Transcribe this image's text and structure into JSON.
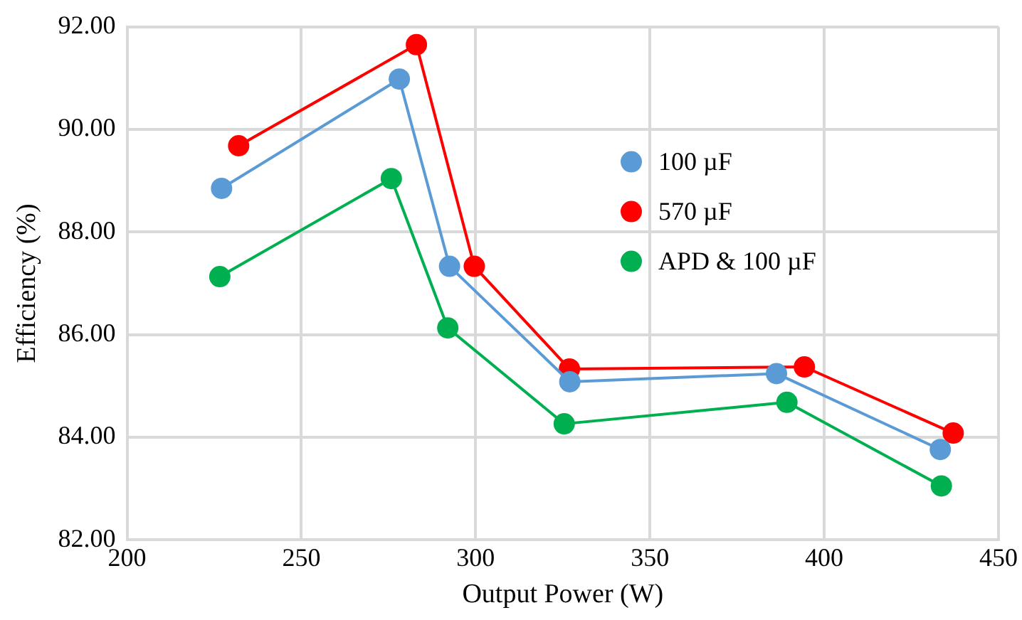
{
  "chart_data": {
    "type": "line",
    "xlabel": "Output Power (W)",
    "ylabel": "Efficiency (%)",
    "xlim": [
      200,
      450
    ],
    "xticks": [
      200,
      250,
      300,
      350,
      400,
      450
    ],
    "ylim": [
      82,
      92
    ],
    "yticks": [
      {
        "value": 82,
        "label": "82.00"
      },
      {
        "value": 84,
        "label": "84.00"
      },
      {
        "value": 86,
        "label": "86.00"
      },
      {
        "value": 88,
        "label": "88.00"
      },
      {
        "value": 90,
        "label": "90.00"
      },
      {
        "value": 92,
        "label": "92.00"
      }
    ],
    "grid": true,
    "legend": "top right",
    "marker": "circle",
    "line_style": "solid",
    "series": [
      {
        "name": "100 µF",
        "color": "#5b9bd5",
        "x": [
          227.1,
          278.1,
          292.5,
          327.0,
          386.3,
          433.3
        ],
        "values": [
          88.85,
          90.98,
          87.33,
          85.08,
          85.24,
          83.76
        ]
      },
      {
        "name": "570 µF",
        "color": "#ff0000",
        "x": [
          232.0,
          283.0,
          299.6,
          326.9,
          394.3,
          437.0
        ],
        "values": [
          89.68,
          91.65,
          87.33,
          85.33,
          85.37,
          84.08
        ]
      },
      {
        "name": "APD & 100 µF",
        "color": "#00b050",
        "x": [
          226.6,
          275.8,
          292.0,
          325.4,
          389.3,
          433.6
        ],
        "values": [
          87.13,
          89.04,
          86.13,
          84.26,
          84.68,
          83.05
        ]
      }
    ]
  }
}
